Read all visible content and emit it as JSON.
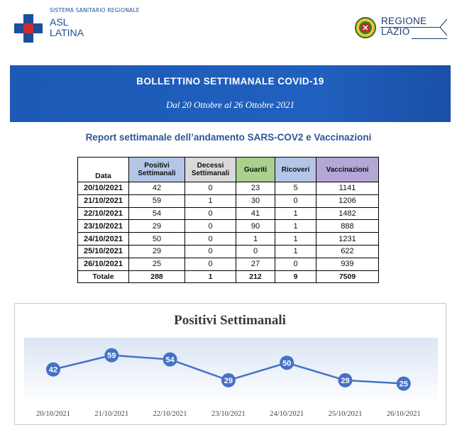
{
  "header": {
    "asl_pre": "SISTEMA SANITARIO REGIONALE",
    "asl_line1": "ASL",
    "asl_line2": "LATINA",
    "region_line1": "REGIONE",
    "region_line2": "LAZIO",
    "colors": {
      "asl_blue": "#1a4f9c",
      "asl_red": "#d5282e",
      "region_blue": "#1c3d6e"
    }
  },
  "banner": {
    "title": "BOLLETTINO SETTIMANALE COVID-19",
    "subtitle": "Dal 20 Ottobre al 26 Ottobre 2021",
    "color": "#1d59b5"
  },
  "report_title": "Report settimanale dell’andamento SARS-COV2 e Vaccinazioni",
  "table": {
    "headers": [
      "Data",
      "Positivi Settimanali",
      "Decessi Settimanali",
      "Guariti",
      "Ricoveri",
      "Vaccinazioni"
    ],
    "header_lines": {
      "pos1": "Positivi",
      "pos2": "Settimanali",
      "dec1": "Decessi",
      "dec2": "Settimanali"
    },
    "rows": [
      [
        "20/10/2021",
        "42",
        "0",
        "23",
        "5",
        "1141"
      ],
      [
        "21/10/2021",
        "59",
        "1",
        "30",
        "0",
        "1206"
      ],
      [
        "22/10/2021",
        "54",
        "0",
        "41",
        "1",
        "1482"
      ],
      [
        "23/10/2021",
        "29",
        "0",
        "90",
        "1",
        "888"
      ],
      [
        "24/10/2021",
        "50",
        "0",
        "1",
        "1",
        "1231"
      ],
      [
        "25/10/2021",
        "29",
        "0",
        "0",
        "1",
        "622"
      ],
      [
        "26/10/2021",
        "25",
        "0",
        "27",
        "0",
        "939"
      ]
    ],
    "totals": [
      "Totale",
      "288",
      "1",
      "212",
      "9",
      "7509"
    ]
  },
  "chart_data": {
    "type": "line",
    "title": "Positivi Settimanali",
    "categories": [
      "20/10/2021",
      "21/10/2021",
      "22/10/2021",
      "23/10/2021",
      "24/10/2021",
      "25/10/2021",
      "26/10/2021"
    ],
    "values": [
      42,
      59,
      54,
      29,
      50,
      29,
      25
    ],
    "ylim": [
      0,
      80
    ],
    "grid": false,
    "legend": "none",
    "line_color": "#4472c4",
    "marker_color": "#4472c4"
  }
}
